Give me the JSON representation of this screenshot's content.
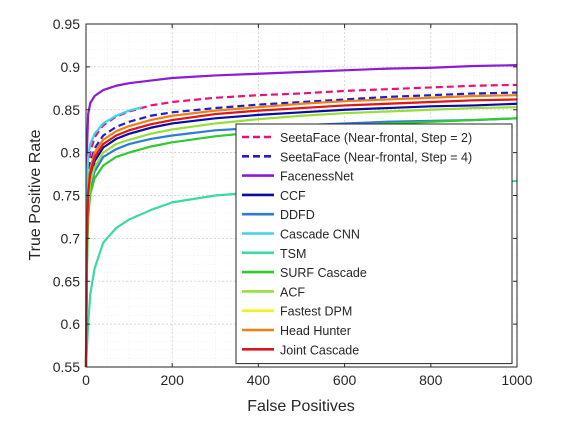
{
  "chart_data": {
    "type": "line",
    "xlabel": "False Positives",
    "ylabel": "True Positive Rate",
    "xlim": [
      0,
      1000
    ],
    "ylim": [
      0.55,
      0.95
    ],
    "x_ticks": [
      0,
      200,
      400,
      600,
      800,
      1000
    ],
    "y_ticks": [
      0.55,
      0.6,
      0.65,
      0.7,
      0.75,
      0.8,
      0.85,
      0.9,
      0.95
    ],
    "x_tick_labels": [
      "0",
      "200",
      "400",
      "600",
      "800",
      "1000"
    ],
    "y_tick_labels": [
      "0.55",
      "0.6",
      "0.65",
      "0.7",
      "0.75",
      "0.8",
      "0.85",
      "0.9",
      "0.95"
    ],
    "grid": true,
    "minor_grid": true,
    "legend_position": "right",
    "series": [
      {
        "name": "SeetaFace (Near-frontal, Step = 2)",
        "color": "#e8107a",
        "dash": "dashed",
        "x": [
          0,
          2,
          5,
          10,
          20,
          40,
          70,
          100,
          150,
          200,
          300,
          400,
          500,
          600,
          700,
          800,
          900,
          1000
        ],
        "y": [
          0.55,
          0.72,
          0.78,
          0.8,
          0.818,
          0.832,
          0.842,
          0.848,
          0.855,
          0.859,
          0.864,
          0.867,
          0.869,
          0.872,
          0.874,
          0.876,
          0.878,
          0.879
        ]
      },
      {
        "name": "SeetaFace (Near-frontal, Step = 4)",
        "color": "#1f1fd0",
        "dash": "dashed",
        "x": [
          0,
          2,
          5,
          10,
          20,
          40,
          70,
          100,
          150,
          200,
          300,
          400,
          500,
          600,
          700,
          800,
          900,
          1000
        ],
        "y": [
          0.55,
          0.7,
          0.765,
          0.788,
          0.805,
          0.82,
          0.83,
          0.836,
          0.843,
          0.847,
          0.852,
          0.856,
          0.859,
          0.862,
          0.865,
          0.867,
          0.869,
          0.87
        ]
      },
      {
        "name": "FacenessNet",
        "color": "#8b1bd6",
        "dash": "solid",
        "x": [
          0,
          2,
          5,
          10,
          20,
          40,
          70,
          100,
          150,
          200,
          300,
          400,
          500,
          600,
          700,
          800,
          900,
          1000
        ],
        "y": [
          0.55,
          0.8,
          0.845,
          0.858,
          0.866,
          0.873,
          0.878,
          0.881,
          0.884,
          0.887,
          0.89,
          0.892,
          0.894,
          0.896,
          0.898,
          0.899,
          0.901,
          0.902
        ]
      },
      {
        "name": "CCF",
        "color": "#0a0aa6",
        "dash": "solid",
        "x": [
          0,
          2,
          5,
          10,
          20,
          40,
          70,
          100,
          150,
          200,
          300,
          400,
          500,
          600,
          700,
          800,
          900,
          1000
        ],
        "y": [
          0.55,
          0.68,
          0.745,
          0.77,
          0.79,
          0.806,
          0.816,
          0.822,
          0.829,
          0.834,
          0.84,
          0.844,
          0.847,
          0.85,
          0.852,
          0.854,
          0.855,
          0.857
        ]
      },
      {
        "name": "DDFD",
        "color": "#2f7bd9",
        "dash": "solid",
        "x": [
          0,
          2,
          5,
          10,
          20,
          40,
          70,
          100,
          150,
          200,
          300,
          400,
          500,
          600,
          700,
          800,
          900,
          1000
        ],
        "y": [
          0.55,
          0.67,
          0.735,
          0.76,
          0.778,
          0.795,
          0.804,
          0.81,
          0.816,
          0.82,
          0.826,
          0.829,
          0.832,
          0.834,
          0.836,
          0.837,
          0.838,
          0.84
        ]
      },
      {
        "name": "Cascade CNN",
        "color": "#3ed4e6",
        "dash": "solid",
        "x": [
          0,
          2,
          5,
          10,
          20,
          40,
          70,
          100,
          130
        ],
        "y": [
          0.55,
          0.76,
          0.795,
          0.81,
          0.822,
          0.834,
          0.843,
          0.849,
          0.853
        ]
      },
      {
        "name": "TSM",
        "color": "#3cd9a0",
        "dash": "solid",
        "x": [
          0,
          2,
          5,
          10,
          20,
          40,
          70,
          100,
          150,
          200,
          300,
          400,
          500,
          600,
          700,
          800,
          900,
          1000
        ],
        "y": [
          0.55,
          0.57,
          0.6,
          0.635,
          0.665,
          0.695,
          0.712,
          0.722,
          0.733,
          0.742,
          0.75,
          0.754,
          0.757,
          0.759,
          0.761,
          0.763,
          0.765,
          0.767
        ]
      },
      {
        "name": "SURF Cascade",
        "color": "#2fca2f",
        "dash": "solid",
        "x": [
          0,
          2,
          5,
          10,
          20,
          40,
          70,
          100,
          150,
          200,
          300,
          400,
          500,
          600,
          700,
          800,
          900,
          1000
        ],
        "y": [
          0.55,
          0.66,
          0.725,
          0.752,
          0.77,
          0.785,
          0.795,
          0.8,
          0.807,
          0.812,
          0.819,
          0.824,
          0.828,
          0.831,
          0.834,
          0.836,
          0.838,
          0.84
        ]
      },
      {
        "name": "ACF",
        "color": "#96e035",
        "dash": "solid",
        "x": [
          0,
          2,
          5,
          10,
          20,
          40,
          70,
          100,
          150,
          200,
          300,
          400,
          500,
          600,
          700,
          800,
          900,
          1000
        ],
        "y": [
          0.55,
          0.68,
          0.74,
          0.765,
          0.783,
          0.8,
          0.81,
          0.815,
          0.822,
          0.827,
          0.834,
          0.839,
          0.843,
          0.846,
          0.848,
          0.85,
          0.852,
          0.853
        ]
      },
      {
        "name": "Fastest DPM",
        "color": "#f4f020",
        "dash": "solid",
        "x": [
          0,
          2,
          5,
          10,
          20,
          40,
          70,
          100,
          150,
          200,
          300,
          400,
          500,
          600,
          700,
          800,
          900,
          1000
        ],
        "y": [
          0.55,
          0.69,
          0.75,
          0.776,
          0.795,
          0.81,
          0.82,
          0.826,
          0.833,
          0.838,
          0.845,
          0.849,
          0.852,
          0.855,
          0.857,
          0.859,
          0.861,
          0.862
        ]
      },
      {
        "name": "Head Hunter",
        "color": "#f07f16",
        "dash": "solid",
        "x": [
          0,
          2,
          5,
          10,
          20,
          40,
          70,
          100,
          150,
          200,
          300,
          400,
          500,
          600,
          700,
          800,
          900,
          1000
        ],
        "y": [
          0.55,
          0.7,
          0.758,
          0.782,
          0.8,
          0.815,
          0.825,
          0.831,
          0.838,
          0.843,
          0.849,
          0.853,
          0.857,
          0.86,
          0.862,
          0.864,
          0.866,
          0.867
        ]
      },
      {
        "name": "Joint Cascade",
        "color": "#e0141e",
        "dash": "solid",
        "x": [
          0,
          2,
          5,
          10,
          20,
          40,
          70,
          100,
          150,
          200,
          300,
          400,
          500,
          600,
          700,
          800,
          900,
          1000
        ],
        "y": [
          0.55,
          0.69,
          0.752,
          0.776,
          0.795,
          0.81,
          0.82,
          0.826,
          0.833,
          0.838,
          0.845,
          0.849,
          0.852,
          0.855,
          0.857,
          0.859,
          0.861,
          0.862
        ]
      }
    ]
  }
}
